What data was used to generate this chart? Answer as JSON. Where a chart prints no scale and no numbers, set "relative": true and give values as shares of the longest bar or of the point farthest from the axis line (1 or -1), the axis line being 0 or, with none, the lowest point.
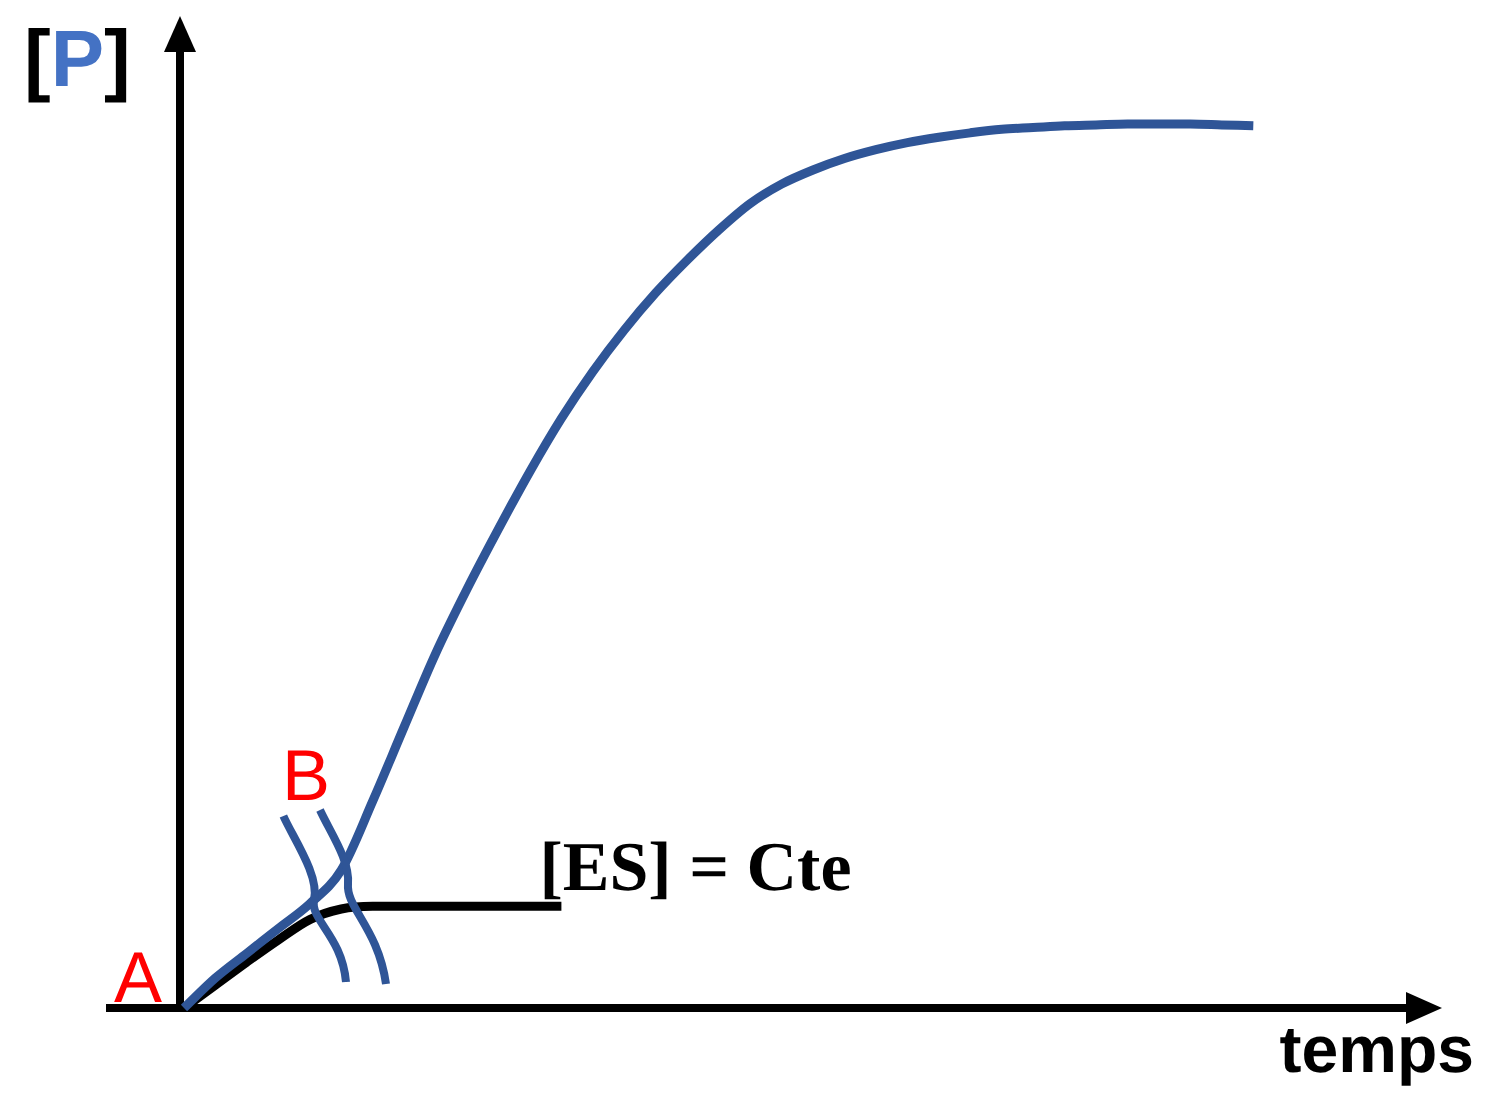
{
  "chart_data": {
    "type": "line",
    "relative": true,
    "xlabel": "temps",
    "ylabel": "[P]",
    "categories": [
      null,
      null,
      null,
      null,
      null,
      null,
      null,
      null,
      null,
      null,
      null,
      null,
      null,
      null,
      null,
      null,
      null,
      null,
      null,
      null,
      null,
      null,
      null,
      null,
      null,
      null,
      null,
      null,
      null,
      null,
      null,
      null,
      null,
      null,
      null,
      null,
      null,
      null,
      null,
      null,
      null
    ],
    "series": [
      {
        "color": "#2f5597",
        "values": [
          0,
          0.034,
          0.062,
          0.09,
          0.118,
          0.156,
          0.234,
          0.318,
          0.401,
          0.474,
          0.542,
          0.607,
          0.667,
          0.72,
          0.767,
          0.809,
          0.846,
          0.88,
          0.91,
          0.932,
          0.948,
          0.961,
          0.971,
          0.979,
          0.985,
          0.99,
          0.994,
          0.996,
          0.998,
          0.999,
          1,
          1,
          1,
          0.999,
          0.998,
          null,
          null,
          null,
          null,
          null,
          null
        ]
      },
      {
        "name": "[ES] = Cte",
        "color": "#000000",
        "values": [
          0,
          0.026,
          0.052,
          0.077,
          0.1,
          0.112,
          0.115,
          0.115,
          0.115,
          0.115,
          0.115,
          0.115,
          0.115,
          null,
          null,
          null,
          null,
          null,
          null,
          null,
          null,
          null,
          null,
          null,
          null,
          null,
          null,
          null,
          null,
          null,
          null,
          null,
          null,
          null,
          null,
          null,
          null,
          null,
          null,
          null,
          null
        ]
      }
    ],
    "annotations": [
      "A",
      "B"
    ]
  }
}
